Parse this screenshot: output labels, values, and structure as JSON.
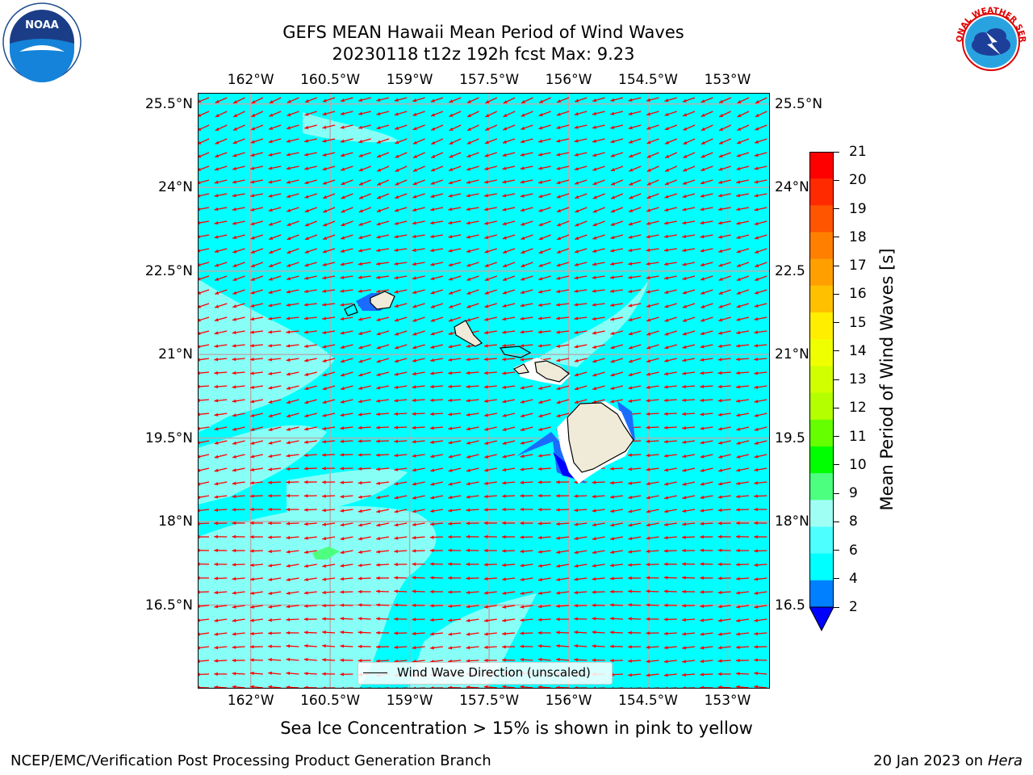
{
  "header": {
    "title_line1": "GEFS MEAN Hawaii Mean Period of Wind Waves",
    "title_line2": "20230118 t12z 192h fcst   Max: 9.23"
  },
  "map": {
    "lon_labels": [
      "162°W",
      "160.5°W",
      "159°W",
      "157.5°W",
      "156°W",
      "154.5°W",
      "153°W"
    ],
    "lon_values": [
      -162,
      -160.5,
      -159,
      -157.5,
      -156,
      -154.5,
      -153
    ],
    "lat_labels_left": [
      "25.5°N",
      "24°N",
      "22.5°N",
      "21°N",
      "19.5°N",
      "18°N",
      "16.5°N"
    ],
    "lat_labels_right": [
      "25.5°N",
      "24°N",
      "22.5",
      "21°N",
      "19.5",
      "18°N",
      "16.5"
    ],
    "lat_values": [
      25.5,
      24,
      22.5,
      21,
      19.5,
      18,
      16.5
    ],
    "lon_range": [
      -163,
      -152.2
    ],
    "lat_range": [
      15.0,
      25.7
    ],
    "grid": true,
    "ocean_color": "#00ffff",
    "land_color": "#efebd8",
    "arrow_color": "#ff0000",
    "dominant_wave_direction": "from east-northeast",
    "legend": {
      "label": "Wind Wave Direction (unscaled)",
      "placement": "bottom-center"
    }
  },
  "colorbar": {
    "label": "Mean Period of Wind Waves [s]",
    "ticks": [
      "21",
      "20",
      "19",
      "18",
      "17",
      "16",
      "15",
      "14",
      "13",
      "12",
      "11",
      "10",
      "9",
      "8",
      "6",
      "4",
      "2"
    ],
    "colors": [
      "#ff0000",
      "#ff2a00",
      "#ff5500",
      "#ff8000",
      "#ffa000",
      "#ffc000",
      "#ffee00",
      "#f0ff00",
      "#d2ff00",
      "#b4ff00",
      "#66ff00",
      "#00ff00",
      "#4dff7f",
      "#a0fff5",
      "#4dffff",
      "#00ffff",
      "#0080ff"
    ],
    "under_color": "#0000ff"
  },
  "notes": {
    "sea_ice": "Sea Ice Concentration > 15% is shown in pink to yellow"
  },
  "footer": {
    "left": "NCEP/EMC/Verification Post Processing Product Generation Branch",
    "right_date": "20 Jan 2023 on ",
    "right_machine": "Hera"
  },
  "logos": {
    "noaa": "NOAA",
    "nws": "NATIONAL WEATHER SERVICE"
  }
}
